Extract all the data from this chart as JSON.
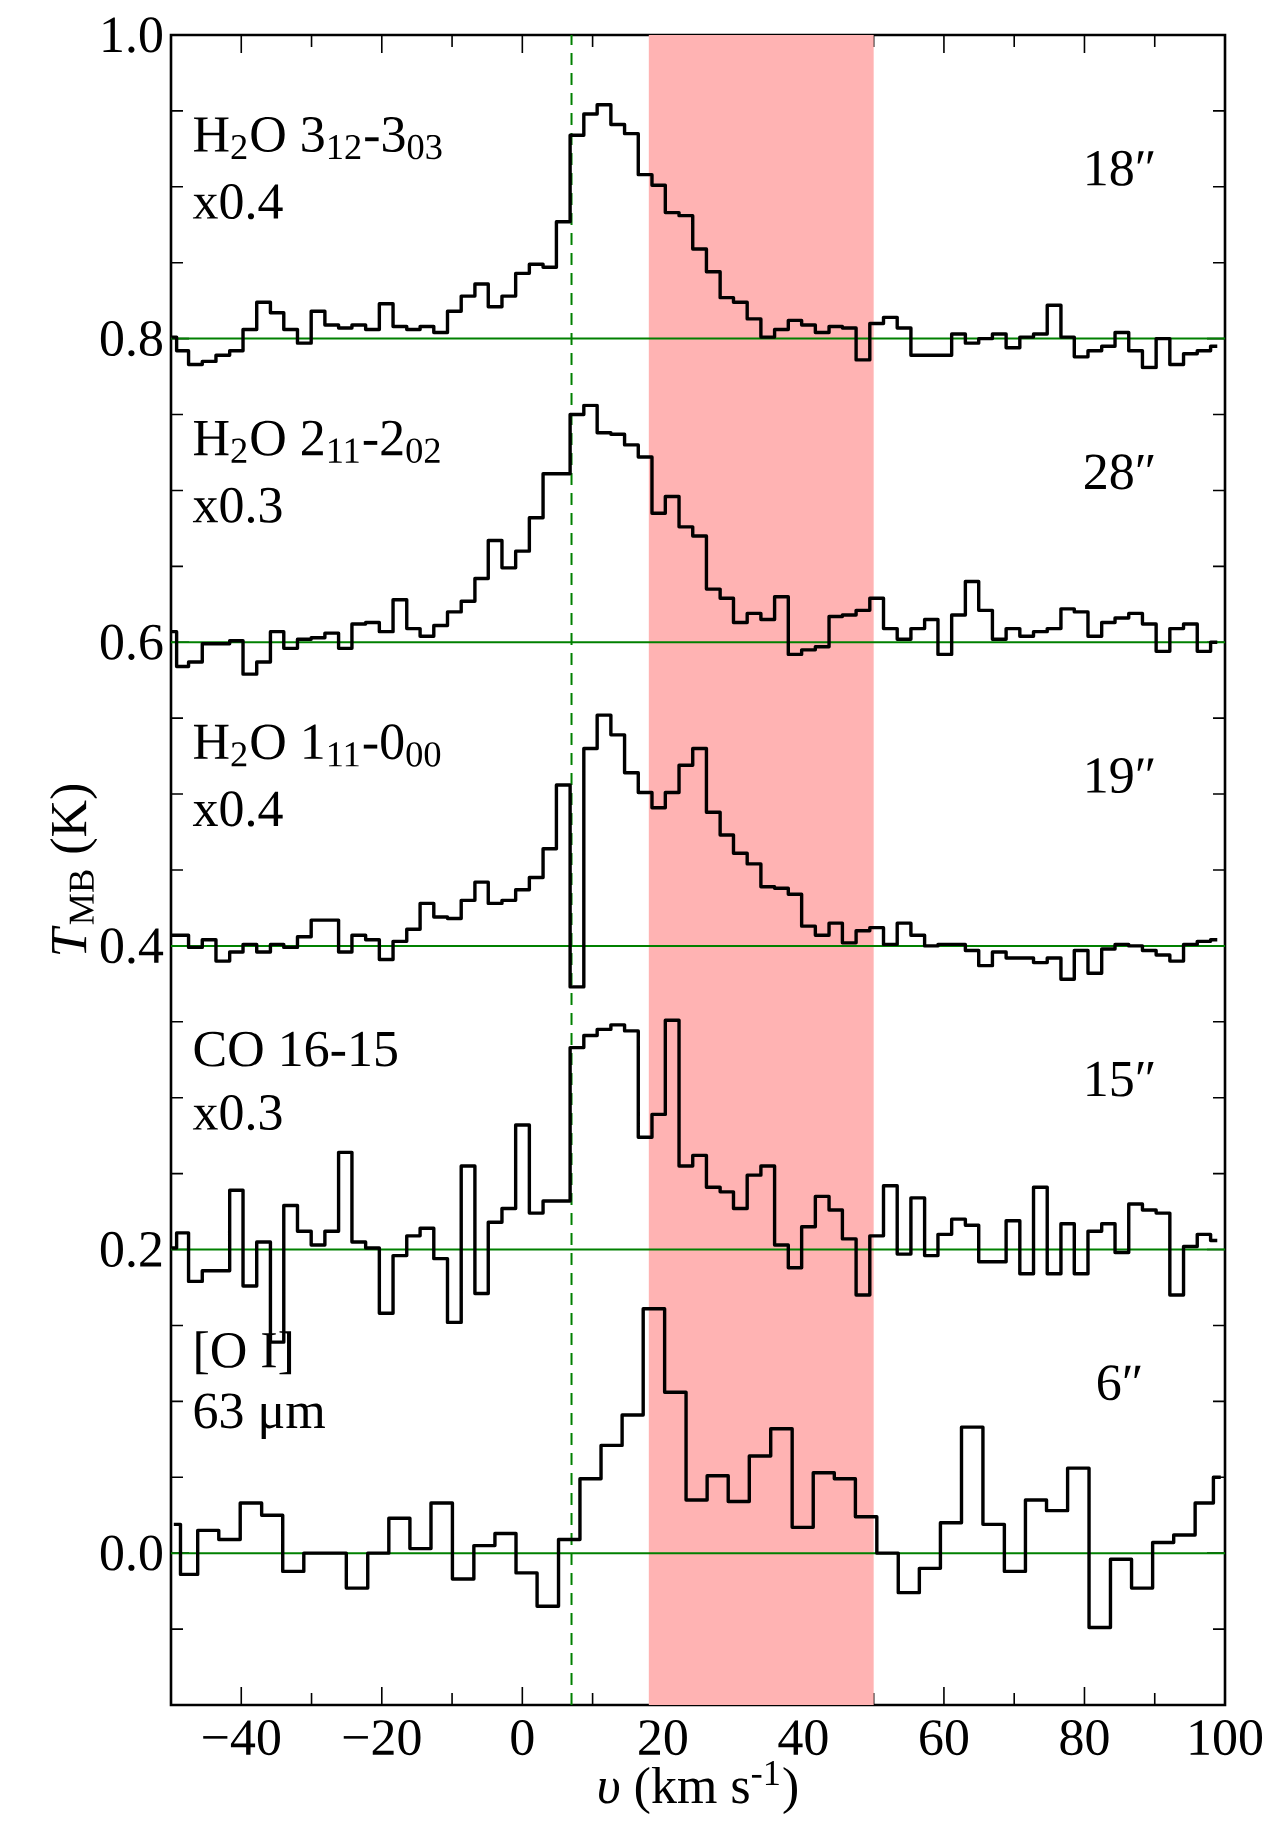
{
  "chart_data": {
    "type": "step",
    "xlabel": "*υ* (km s$^{-1}$)",
    "ylabel": "*T*$_{MB}$ (K)",
    "xlim": [
      -50,
      100
    ],
    "ylim": [
      -0.1,
      1.0
    ],
    "xticks": [
      {
        "value": -50,
        "label": null
      },
      {
        "value": -40,
        "label": "−40"
      },
      {
        "value": -30,
        "label": null
      },
      {
        "value": -20,
        "label": "−20"
      },
      {
        "value": -10,
        "label": null
      },
      {
        "value": 0,
        "label": "0"
      },
      {
        "value": 10,
        "label": null
      },
      {
        "value": 20,
        "label": "20"
      },
      {
        "value": 30,
        "label": null
      },
      {
        "value": 40,
        "label": "40"
      },
      {
        "value": 50,
        "label": null
      },
      {
        "value": 60,
        "label": "60"
      },
      {
        "value": 70,
        "label": null
      },
      {
        "value": 80,
        "label": "80"
      },
      {
        "value": 90,
        "label": null
      },
      {
        "value": 100,
        "label": "100"
      }
    ],
    "yticks": [
      {
        "value": -0.05,
        "label": null
      },
      {
        "value": 0,
        "label": "0.0"
      },
      {
        "value": 0.05,
        "label": null
      },
      {
        "value": 0.1,
        "label": null
      },
      {
        "value": 0.15,
        "label": null
      },
      {
        "value": 0.2,
        "label": "0.2"
      },
      {
        "value": 0.25,
        "label": null
      },
      {
        "value": 0.3,
        "label": null
      },
      {
        "value": 0.35,
        "label": null
      },
      {
        "value": 0.4,
        "label": "0.4"
      },
      {
        "value": 0.45,
        "label": null
      },
      {
        "value": 0.5,
        "label": null
      },
      {
        "value": 0.55,
        "label": null
      },
      {
        "value": 0.6,
        "label": "0.6"
      },
      {
        "value": 0.65,
        "label": null
      },
      {
        "value": 0.7,
        "label": null
      },
      {
        "value": 0.75,
        "label": null
      },
      {
        "value": 0.8,
        "label": "0.8"
      },
      {
        "value": 0.85,
        "label": null
      },
      {
        "value": 0.9,
        "label": null
      },
      {
        "value": 0.95,
        "label": null
      },
      {
        "value": 1.0,
        "label": "1.0"
      }
    ],
    "x": [
      -49.9,
      -48.5,
      -46.5,
      -44.6,
      -42.6,
      -40.7,
      -38.8,
      -36.8,
      -34.9,
      -33.0,
      -31.0,
      -29.1,
      -27.1,
      -25.2,
      -23.3,
      -21.3,
      -19.4,
      -17.4,
      -15.5,
      -13.6,
      -11.6,
      -9.7,
      -7.7,
      -5.8,
      -3.9,
      -1.9,
      0.0,
      2.0,
      3.9,
      5.8,
      7.8,
      9.7,
      11.6,
      13.6,
      15.5,
      17.5,
      19.4,
      21.3,
      23.3,
      25.2,
      27.2,
      29.1,
      31.0,
      33.0,
      34.9,
      36.9,
      38.8,
      40.7,
      42.7,
      44.6,
      46.5,
      48.5,
      50.4,
      52.4,
      54.3,
      56.3,
      58.2,
      60.1,
      62.1,
      64.0,
      65.9,
      67.9,
      69.8,
      71.8,
      73.7,
      75.7,
      77.6,
      79.5,
      81.5,
      83.4,
      85.3,
      87.3,
      89.2,
      91.2,
      93.1,
      95.1,
      97.0,
      98.9
    ],
    "series": [
      {
        "name": "H$_{2}$O 3$_{12}$-3$_{03}$",
        "color": "#000000",
        "values": [
          0.801,
          0.792,
          0.783,
          0.785,
          0.789,
          0.792,
          0.806,
          0.824,
          0.817,
          0.806,
          0.797,
          0.818,
          0.809,
          0.807,
          0.809,
          0.806,
          0.823,
          0.808,
          0.806,
          0.808,
          0.804,
          0.818,
          0.828,
          0.836,
          0.821,
          0.828,
          0.843,
          0.849,
          0.847,
          0.877,
          0.934,
          0.948,
          0.954,
          0.941,
          0.935,
          0.908,
          0.901,
          0.883,
          0.881,
          0.859,
          0.844,
          0.827,
          0.824,
          0.813,
          0.801,
          0.806,
          0.812,
          0.809,
          0.804,
          0.808,
          0.807,
          0.786,
          0.81,
          0.814,
          0.807,
          0.789,
          0.789,
          0.789,
          0.803,
          0.797,
          0.8,
          0.803,
          0.794,
          0.801,
          0.803,
          0.822,
          0.801,
          0.788,
          0.792,
          0.795,
          0.804,
          0.792,
          0.781,
          0.8,
          0.783,
          0.79,
          0.792,
          0.795
        ]
      },
      {
        "name": "H$_{2}$O 2$_{11}$-2$_{02}$",
        "color": "#000000",
        "values": [
          0.607,
          0.584,
          0.587,
          0.599,
          0.599,
          0.601,
          0.579,
          0.587,
          0.607,
          0.596,
          0.602,
          0.603,
          0.606,
          0.596,
          0.612,
          0.613,
          0.607,
          0.628,
          0.609,
          0.604,
          0.611,
          0.62,
          0.627,
          0.642,
          0.667,
          0.649,
          0.66,
          0.682,
          0.711,
          0.711,
          0.75,
          0.756,
          0.738,
          0.737,
          0.73,
          0.722,
          0.685,
          0.696,
          0.676,
          0.67,
          0.635,
          0.629,
          0.613,
          0.619,
          0.615,
          0.63,
          0.592,
          0.595,
          0.597,
          0.617,
          0.618,
          0.621,
          0.629,
          0.609,
          0.602,
          0.609,
          0.615,
          0.592,
          0.618,
          0.64,
          0.621,
          0.602,
          0.609,
          0.604,
          0.607,
          0.609,
          0.622,
          0.62,
          0.604,
          0.613,
          0.616,
          0.619,
          0.612,
          0.594,
          0.609,
          0.612,
          0.594,
          0.6
        ]
      },
      {
        "name": "H$_{2}$O 1$_{11}$-0$_{00}$",
        "color": "#000000",
        "values": [
          0.407,
          0.407,
          0.399,
          0.404,
          0.39,
          0.396,
          0.401,
          0.396,
          0.401,
          0.399,
          0.406,
          0.417,
          0.417,
          0.396,
          0.407,
          0.404,
          0.391,
          0.403,
          0.411,
          0.428,
          0.419,
          0.418,
          0.43,
          0.442,
          0.428,
          0.43,
          0.437,
          0.445,
          0.464,
          0.506,
          0.373,
          0.53,
          0.552,
          0.539,
          0.514,
          0.501,
          0.491,
          0.501,
          0.519,
          0.53,
          0.488,
          0.473,
          0.461,
          0.454,
          0.439,
          0.438,
          0.434,
          0.413,
          0.407,
          0.415,
          0.402,
          0.41,
          0.412,
          0.401,
          0.415,
          0.407,
          0.4,
          0.401,
          0.401,
          0.397,
          0.387,
          0.396,
          0.392,
          0.392,
          0.389,
          0.392,
          0.378,
          0.397,
          0.382,
          0.398,
          0.401,
          0.4,
          0.397,
          0.394,
          0.39,
          0.401,
          0.403,
          0.404
        ]
      },
      {
        "name": "CO 16-15",
        "color": "#000000",
        "values": [
          0.201,
          0.211,
          0.179,
          0.186,
          0.186,
          0.239,
          0.176,
          0.205,
          0.139,
          0.229,
          0.212,
          0.203,
          0.212,
          0.264,
          0.205,
          0.201,
          0.158,
          0.196,
          0.209,
          0.214,
          0.194,
          0.152,
          0.255,
          0.171,
          0.218,
          0.227,
          0.282,
          0.224,
          0.232,
          0.232,
          0.333,
          0.341,
          0.345,
          0.348,
          0.344,
          0.274,
          0.289,
          0.351,
          0.255,
          0.262,
          0.241,
          0.238,
          0.227,
          0.249,
          0.255,
          0.203,
          0.188,
          0.215,
          0.235,
          0.226,
          0.207,
          0.17,
          0.209,
          0.242,
          0.197,
          0.234,
          0.196,
          0.21,
          0.22,
          0.216,
          0.192,
          0.192,
          0.219,
          0.184,
          0.241,
          0.184,
          0.217,
          0.184,
          0.212,
          0.217,
          0.198,
          0.23,
          0.226,
          0.224,
          0.17,
          0.202,
          0.21,
          0.206
        ]
      },
      {
        "name": "[O I]",
        "color": "#000000",
        "x": [
          -49.6,
          -47.7,
          -44.7,
          -41.7,
          -38.6,
          -35.6,
          -32.6,
          -29.6,
          -26.6,
          -23.5,
          -20.5,
          -17.5,
          -14.5,
          -11.5,
          -8.4,
          -5.4,
          -2.4,
          0.6,
          3.6,
          6.7,
          9.7,
          12.7,
          15.7,
          18.7,
          21.8,
          24.8,
          27.8,
          30.8,
          33.8,
          36.9,
          39.9,
          42.9,
          45.9,
          48.9,
          52.0,
          55.0,
          58.0,
          61.0,
          64.0,
          67.1,
          70.1,
          73.1,
          76.1,
          79.1,
          82.2,
          85.2,
          88.2,
          91.2,
          94.2,
          97.3,
          99.4
        ],
        "values": [
          0.019,
          -0.014,
          0.015,
          0.009,
          0.033,
          0.025,
          -0.012,
          0.0,
          0.0,
          -0.023,
          0.0,
          0.023,
          0.003,
          0.033,
          -0.017,
          0.005,
          0.013,
          -0.013,
          -0.035,
          0.009,
          0.049,
          0.071,
          0.091,
          0.161,
          0.106,
          0.035,
          0.051,
          0.034,
          0.064,
          0.082,
          0.017,
          0.053,
          0.049,
          0.024,
          0.0,
          -0.026,
          -0.01,
          0.02,
          0.083,
          0.019,
          -0.012,
          0.035,
          0.028,
          0.056,
          -0.049,
          -0.004,
          -0.023,
          0.007,
          0.012,
          0.033,
          0.05
        ]
      }
    ],
    "ref_lines": [
      {
        "axis": "y",
        "value": 0.8,
        "color": "#008000",
        "line_style": "solid"
      },
      {
        "axis": "y",
        "value": 0.6,
        "color": "#008000",
        "line_style": "solid"
      },
      {
        "axis": "y",
        "value": 0.4,
        "color": "#008000",
        "line_style": "solid"
      },
      {
        "axis": "y",
        "value": 0.2,
        "color": "#008000",
        "line_style": "solid"
      },
      {
        "axis": "y",
        "value": 0.0,
        "color": "#008000",
        "line_style": "solid"
      },
      {
        "axis": "x",
        "value": 7,
        "color": "#008000",
        "line_style": "dashed"
      }
    ],
    "bands": [
      {
        "axis": "x",
        "from": 18,
        "to": 50,
        "color": "#ffb3b3"
      }
    ],
    "annotations": [
      "18″",
      "28″",
      "19″",
      "15″",
      "6″",
      "x0.4",
      "x0.3",
      "x0.4",
      "x0.3",
      "63 μm"
    ],
    "legend": "left",
    "line_style": "solid",
    "marker": "none"
  }
}
